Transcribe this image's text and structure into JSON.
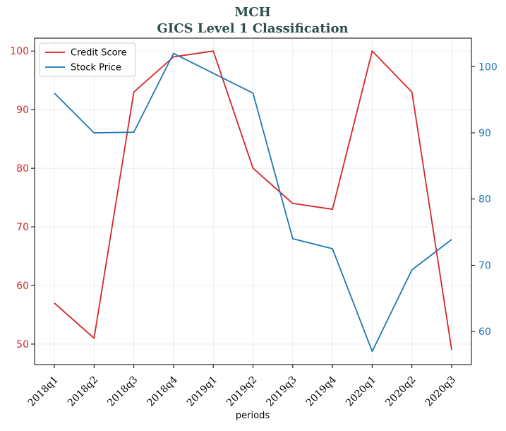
{
  "chart_data": {
    "type": "line",
    "title": "MCH",
    "subtitle": "GICS Level 1 Classification",
    "xlabel": "periods",
    "categories": [
      "2018q1",
      "2018q2",
      "2018q3",
      "2018q4",
      "2019q1",
      "2019q2",
      "2019q3",
      "2019q4",
      "2020q1",
      "2020q2",
      "2020q3"
    ],
    "y_left": {
      "ylim": [
        46.5,
        102.2
      ],
      "ticks": [
        50,
        60,
        70,
        80,
        90,
        100
      ],
      "color": "#d62728"
    },
    "y_right": {
      "ylim": [
        55.0,
        104.3
      ],
      "ticks": [
        60,
        70,
        80,
        90,
        100
      ],
      "color": "#1f77b4"
    },
    "grid": true,
    "legend_position": "top-left",
    "series": [
      {
        "name": "Credit Score",
        "axis": "left",
        "color": "#d62728",
        "values": [
          57,
          51,
          93,
          99,
          100,
          80,
          74,
          73,
          100,
          93,
          49
        ]
      },
      {
        "name": "Stock Price",
        "axis": "right",
        "color": "#1f77b4",
        "values": [
          96.0,
          90.0,
          90.1,
          102.0,
          99.0,
          96.0,
          74.0,
          72.5,
          57.0,
          69.3,
          73.9
        ]
      }
    ]
  },
  "colors": {
    "title": "#2f4f4f",
    "axis": "#000000",
    "grid": "#e6e6e6"
  }
}
